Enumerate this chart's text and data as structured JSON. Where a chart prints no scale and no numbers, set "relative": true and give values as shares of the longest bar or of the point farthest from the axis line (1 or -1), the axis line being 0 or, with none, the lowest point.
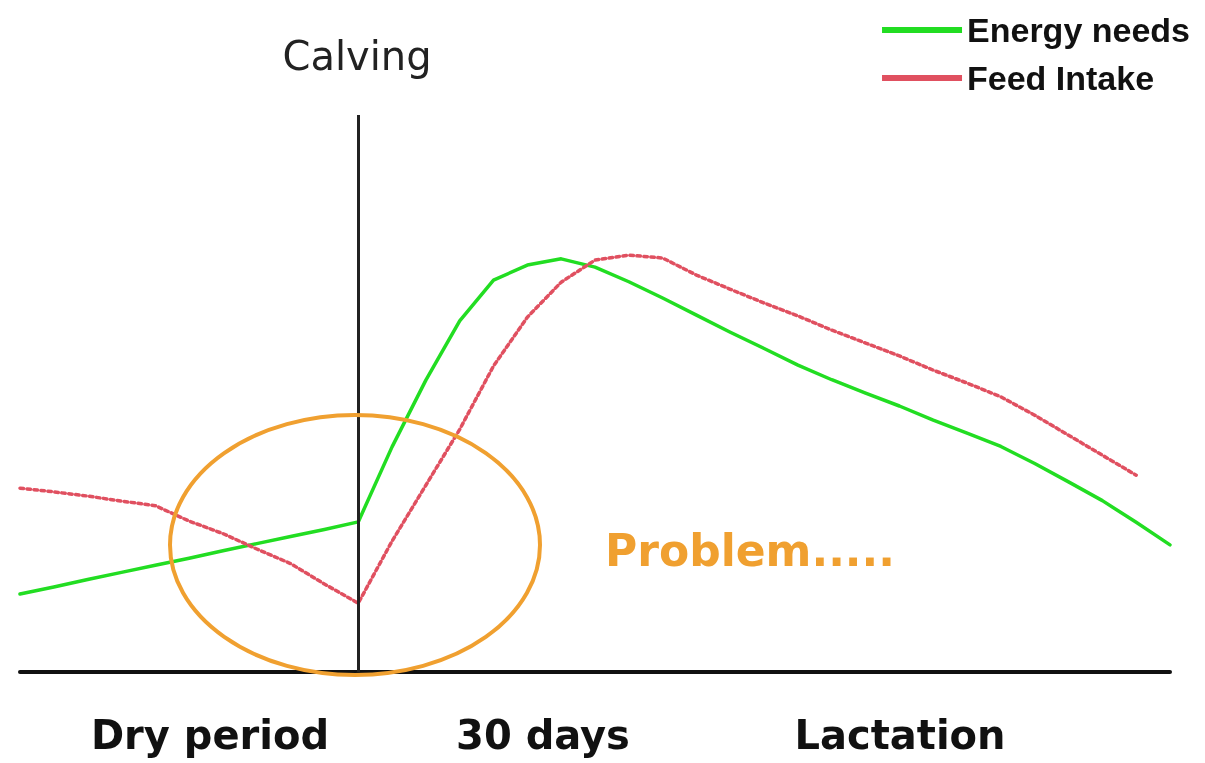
{
  "chart_data": {
    "type": "line",
    "relative": true,
    "categories": [
      null,
      null,
      null,
      null,
      null,
      null,
      null,
      null,
      null,
      null,
      null,
      null,
      null,
      null,
      null,
      null,
      null,
      null,
      null,
      null,
      null,
      null,
      null,
      null,
      null,
      null,
      null,
      null,
      null,
      null,
      null,
      null,
      null,
      null,
      null
    ],
    "series": [
      {
        "name": "Energy needs",
        "color": "#22dd22",
        "line_style": "solid",
        "values": [
          0.187,
          0.204,
          0.222,
          0.239,
          0.256,
          0.273,
          0.291,
          0.308,
          0.325,
          0.342,
          0.36,
          0.54,
          0.7,
          0.842,
          0.94,
          0.976,
          0.991,
          0.971,
          0.936,
          0.897,
          0.856,
          0.815,
          0.776,
          0.736,
          0.701,
          0.669,
          0.638,
          0.604,
          0.573,
          0.541,
          0.5,
          0.456,
          0.411,
          0.359,
          0.305
        ]
      },
      {
        "name": "Feed Intake",
        "color": "#e05060",
        "line_style": "dotted",
        "values": [
          0.441,
          0.432,
          0.422,
          0.41,
          0.399,
          0.362,
          0.332,
          0.295,
          0.26,
          0.211,
          0.165,
          0.314,
          0.448,
          0.582,
          0.734,
          0.851,
          0.935,
          0.988,
          1,
          0.993,
          0.952,
          0.918,
          0.885,
          0.854,
          0.82,
          0.789,
          0.758,
          0.724,
          0.693,
          0.66,
          0.616,
          0.568,
          0.52,
          0.472,
          null
        ]
      }
    ],
    "annotations": [
      "Dry period",
      "30 days",
      "Lactation",
      "Problem.....",
      "Calving"
    ],
    "legend": "top right",
    "marker": "none",
    "grid": false
  }
}
